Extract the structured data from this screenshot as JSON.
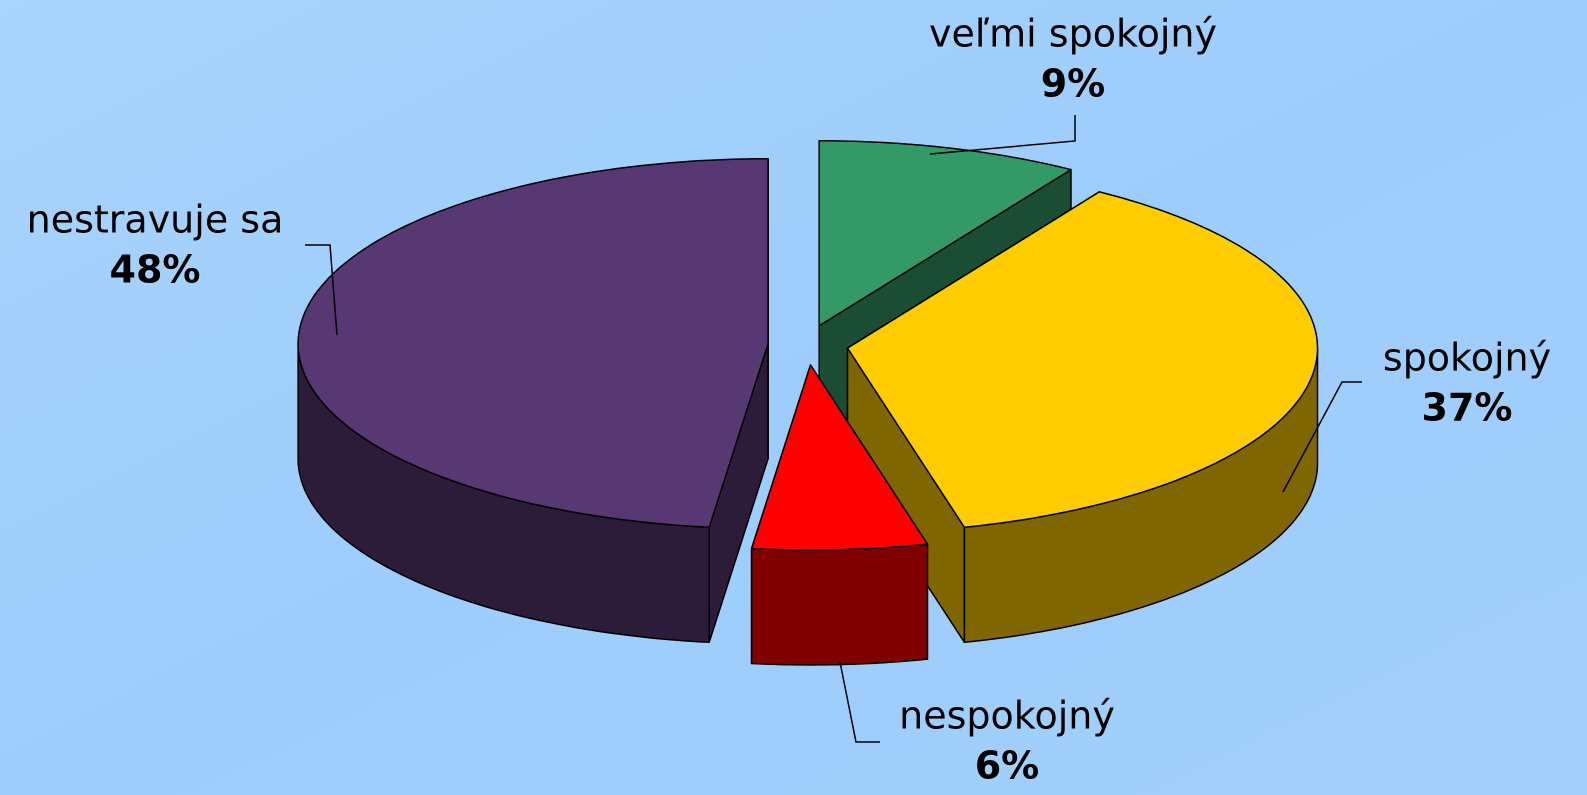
{
  "chart_data": {
    "type": "pie",
    "categories": [
      "veľmi spokojný",
      "spokojný",
      "nespokojný",
      "nestravuje sa"
    ],
    "values": [
      9,
      37,
      6,
      48
    ],
    "value_labels": [
      "9%",
      "37%",
      "6%",
      "48%"
    ],
    "colors": [
      "#339966",
      "#ffcc00",
      "#ff0000",
      "#583872"
    ]
  }
}
